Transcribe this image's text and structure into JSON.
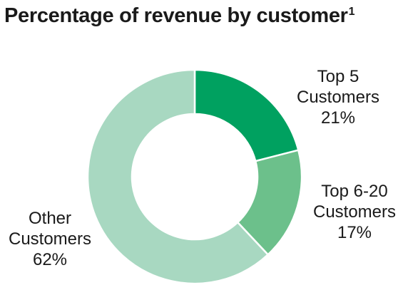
{
  "title": {
    "text": "Percentage of revenue by customer",
    "footnote": "1"
  },
  "chart_data": {
    "type": "pie",
    "donut": true,
    "title": "Percentage of revenue by customer",
    "slices": [
      {
        "label_lines": [
          "Top 5",
          "Customers",
          "21%"
        ],
        "name": "Top 5 Customers",
        "value": 21,
        "color": "#00a160"
      },
      {
        "label_lines": [
          "Top 6-20",
          "Customers",
          "17%"
        ],
        "name": "Top 6-20 Customers",
        "value": 17,
        "color": "#6cc08b"
      },
      {
        "label_lines": [
          "Other",
          "Customers",
          "62%"
        ],
        "name": "Other Customers",
        "value": 62,
        "color": "#a8d8c1"
      }
    ],
    "start_angle_deg": 0,
    "direction": "clockwise"
  }
}
